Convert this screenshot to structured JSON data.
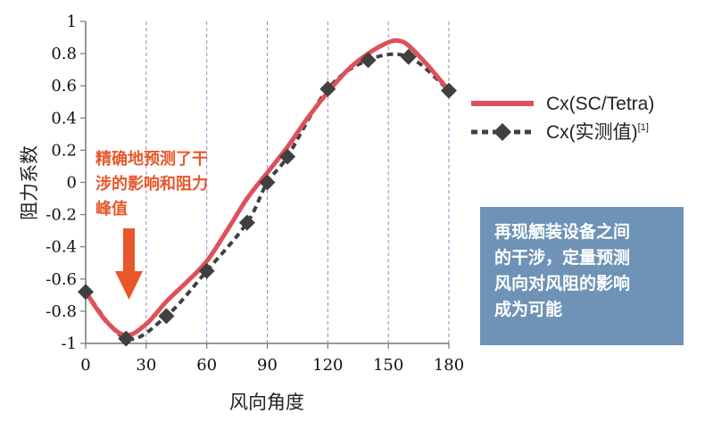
{
  "chart_data": {
    "type": "line",
    "xlabel": "风向角度",
    "ylabel": "阻力系数",
    "xlim": [
      0,
      180
    ],
    "ylim": [
      -1,
      1
    ],
    "xticks": [
      "0",
      "30",
      "60",
      "90",
      "120",
      "150",
      "180"
    ],
    "yticks": [
      "1",
      "0.8",
      "0.6",
      "0.4",
      "0.2",
      "0",
      "-0.2",
      "-0.4",
      "-0.6",
      "-0.8",
      "-1"
    ],
    "grid": {
      "vertical": true,
      "horizontal": false
    },
    "legend_position": "right",
    "series": [
      {
        "name": "Cx(SC/Tetra)",
        "style": "solid",
        "color": "#e0505a",
        "x": [
          0,
          10,
          20,
          30,
          40,
          50,
          60,
          70,
          80,
          90,
          100,
          110,
          120,
          130,
          140,
          150,
          155,
          160,
          170,
          180
        ],
        "y": [
          -0.68,
          -0.86,
          -0.95,
          -0.88,
          -0.74,
          -0.62,
          -0.49,
          -0.3,
          -0.1,
          0.06,
          0.22,
          0.4,
          0.56,
          0.7,
          0.8,
          0.87,
          0.88,
          0.85,
          0.72,
          0.57
        ]
      },
      {
        "name": "Cx(实测值)",
        "name_suffix": "[1]",
        "style": "dashed-diamond",
        "color": "#404040",
        "x": [
          0,
          20,
          40,
          60,
          80,
          90,
          100,
          120,
          140,
          160,
          180
        ],
        "y": [
          -0.68,
          -0.97,
          -0.83,
          -0.55,
          -0.25,
          0.0,
          0.16,
          0.58,
          0.76,
          0.78,
          0.57
        ]
      }
    ]
  },
  "annotation": {
    "lines": [
      "精确地预测了干",
      "涉的影响和阻力",
      "峰值"
    ],
    "color": "#e8572a"
  },
  "info_box": {
    "lines": [
      "再现舾装设备之间",
      "的干涉，定量预测",
      "风向对风阻的影响",
      "成为可能"
    ],
    "background": "#6f93b6"
  }
}
